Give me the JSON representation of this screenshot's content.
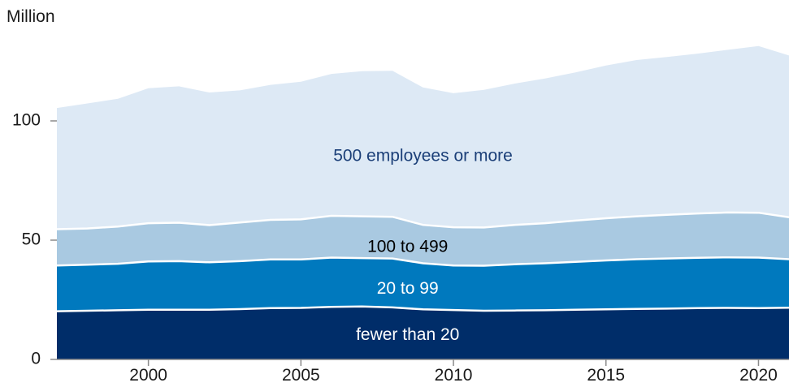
{
  "chart_data": {
    "type": "area",
    "stacked": true,
    "ylabel": "Million",
    "ylim": [
      0,
      135
    ],
    "xlim": [
      1997,
      2021
    ],
    "y_ticks": [
      0,
      50,
      100
    ],
    "x_ticks": [
      2000,
      2005,
      2010,
      2015,
      2020
    ],
    "grid": false,
    "legend": "inline labels",
    "x": [
      1997,
      1998,
      1999,
      2000,
      2001,
      2002,
      2003,
      2004,
      2005,
      2006,
      2007,
      2008,
      2009,
      2010,
      2011,
      2012,
      2013,
      2014,
      2015,
      2016,
      2017,
      2018,
      2019,
      2020,
      2021
    ],
    "series": [
      {
        "name": "fewer than 20",
        "color": "#002d69",
        "label_color": "#ffffff",
        "values": [
          20.2,
          20.4,
          20.6,
          20.8,
          20.8,
          20.8,
          21.1,
          21.5,
          21.6,
          22.0,
          22.2,
          21.8,
          21.0,
          20.7,
          20.4,
          20.5,
          20.6,
          20.8,
          21.0,
          21.2,
          21.3,
          21.5,
          21.6,
          21.5,
          21.7
        ]
      },
      {
        "name": "20 to 99",
        "color": "#0079be",
        "label_color": "#ffffff",
        "values": [
          19.2,
          19.3,
          19.5,
          20.3,
          20.4,
          19.9,
          20.1,
          20.4,
          20.3,
          20.7,
          20.3,
          20.5,
          19.3,
          18.7,
          18.9,
          19.4,
          19.7,
          20.1,
          20.5,
          20.8,
          21.0,
          21.1,
          21.2,
          21.2,
          20.3
        ]
      },
      {
        "name": "100 to 499",
        "color": "#a9c9e1",
        "label_color": "#000000",
        "values": [
          15.2,
          15.2,
          15.6,
          16.0,
          16.1,
          15.6,
          16.2,
          16.6,
          16.8,
          17.5,
          17.5,
          17.5,
          16.1,
          16.0,
          16.0,
          16.5,
          16.8,
          17.3,
          17.7,
          18.0,
          18.3,
          18.6,
          18.8,
          18.8,
          17.6
        ]
      },
      {
        "name": "500 employees or more",
        "color": "#dde9f5",
        "label_color": "#1b3f78",
        "values": [
          50.8,
          52.4,
          53.6,
          56.6,
          57.2,
          55.6,
          55.4,
          56.6,
          57.7,
          59.5,
          60.8,
          61.2,
          57.6,
          56.2,
          57.7,
          59.2,
          60.7,
          62.1,
          64.0,
          65.5,
          66.2,
          67.0,
          68.2,
          69.9,
          67.8
        ]
      }
    ],
    "inline_labels": [
      {
        "series": 3,
        "text": "500 employees or more",
        "x": 2009,
        "y": 85
      },
      {
        "series": 2,
        "text": "100 to 499",
        "x": 2008.5,
        "y": 47
      },
      {
        "series": 1,
        "text": "20 to 99",
        "x": 2008.5,
        "y": 29.5
      },
      {
        "series": 0,
        "text": "fewer than 20",
        "x": 2008.5,
        "y": 10
      }
    ]
  }
}
